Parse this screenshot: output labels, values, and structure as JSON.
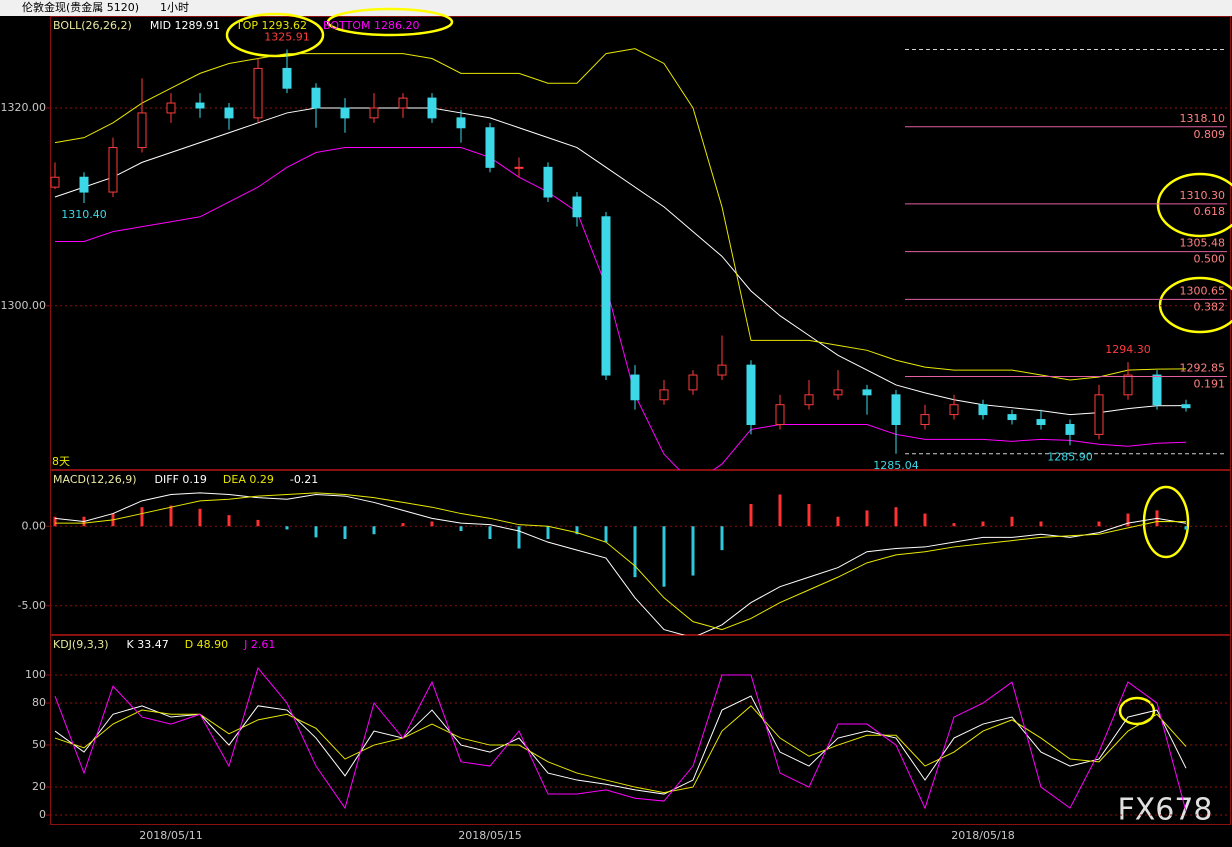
{
  "header": {
    "symbol": "伦敦金现(贵金属 5120)",
    "period": "1小时"
  },
  "watermark": "FX678",
  "chart_data": [
    {
      "type": "candlestick",
      "indicator": "BOLL(26,26,2)",
      "ylim": [
        1283.4,
        1329.3
      ],
      "yticks": [
        {
          "value": 1300,
          "label": "1300.00"
        },
        {
          "value": 1320,
          "label": "1320.00"
        }
      ],
      "grid": true,
      "up_color": "#ff3c3c",
      "down_color": "#3cd8e8",
      "open": [
        1312,
        1313,
        1311.5,
        1316,
        1319.5,
        1320.5,
        1320,
        1319,
        1324,
        1322,
        1320,
        1319,
        1320,
        1321,
        1319,
        1318,
        1314,
        1314,
        1311,
        1309,
        1293,
        1290.5,
        1291.5,
        1293,
        1294,
        1288,
        1290,
        1291,
        1291.5,
        1291,
        1288,
        1289,
        1290,
        1289,
        1288.5,
        1288,
        1287,
        1291,
        1293,
        1290
      ],
      "high": [
        1314.5,
        1313.5,
        1317,
        1323,
        1321.5,
        1321.5,
        1320.5,
        1325,
        1325.91,
        1322.5,
        1321,
        1321.5,
        1321.5,
        1321.5,
        1319.8,
        1318.5,
        1315,
        1314.5,
        1311.5,
        1309.5,
        1294,
        1292.5,
        1293.5,
        1297,
        1294.5,
        1291,
        1292.5,
        1293.5,
        1292,
        1291.5,
        1290,
        1291,
        1290.5,
        1289.5,
        1289.5,
        1288.5,
        1292,
        1294.3,
        1293.5,
        1290.5
      ],
      "low": [
        1311.8,
        1310.4,
        1311,
        1315.5,
        1318.5,
        1319,
        1317.8,
        1318.5,
        1321.5,
        1318,
        1317.5,
        1318.5,
        1319,
        1318.5,
        1316.5,
        1313.5,
        1313,
        1310.5,
        1308,
        1292.5,
        1289.5,
        1290,
        1291,
        1292.5,
        1287,
        1287.5,
        1289.5,
        1290.5,
        1289,
        1285.04,
        1287.5,
        1288.5,
        1288.5,
        1288,
        1287.5,
        1285.9,
        1286.5,
        1290.5,
        1289.5,
        1289.3
      ],
      "close": [
        1313,
        1311.5,
        1316,
        1319.5,
        1320.5,
        1320,
        1319,
        1324,
        1322,
        1320,
        1319,
        1320,
        1321,
        1319,
        1318,
        1314,
        1314,
        1311,
        1309,
        1293,
        1290.5,
        1291.5,
        1293,
        1294,
        1288,
        1290,
        1291,
        1291.5,
        1291,
        1288,
        1289,
        1290,
        1289,
        1288.5,
        1288,
        1287,
        1291,
        1293,
        1290,
        1289.7
      ],
      "series": [
        {
          "name": "MID 1289.91",
          "color": "#ffffff",
          "values": [
            1311,
            1312,
            1313,
            1314.5,
            1315.5,
            1316.5,
            1317.5,
            1318.5,
            1319.5,
            1320,
            1320,
            1320,
            1320,
            1320,
            1319.5,
            1319,
            1318,
            1317,
            1316,
            1314,
            1312,
            1310,
            1307.5,
            1305,
            1301.5,
            1299,
            1297,
            1295,
            1293.5,
            1292,
            1291.2,
            1290.5,
            1290,
            1289.7,
            1289.4,
            1289,
            1289.2,
            1289.6,
            1289.9,
            1289.91
          ]
        },
        {
          "name": "TOP 1293.62",
          "color": "#e8e800",
          "values": [
            1316.5,
            1317,
            1318.5,
            1320.5,
            1322,
            1323.5,
            1324.5,
            1325,
            1325.5,
            1325.5,
            1325.5,
            1325.5,
            1325.5,
            1325,
            1323.5,
            1323.5,
            1323.5,
            1322.5,
            1322.5,
            1325.5,
            1326,
            1324.5,
            1320,
            1310,
            1296.5,
            1296.5,
            1296.5,
            1296,
            1295.5,
            1294.5,
            1293.8,
            1293.5,
            1293.5,
            1293.5,
            1293,
            1292.5,
            1292.8,
            1293.5,
            1293.6,
            1293.62
          ]
        },
        {
          "name": "BOTTOM 1286.20",
          "color": "#ff00ff",
          "values": [
            1306.5,
            1306.5,
            1307.5,
            1308,
            1308.5,
            1309,
            1310.5,
            1312,
            1314,
            1315.5,
            1316,
            1316,
            1316,
            1316,
            1316,
            1315,
            1313,
            1311.5,
            1309.5,
            1302,
            1291,
            1285,
            1282,
            1284,
            1287.5,
            1288,
            1288,
            1288,
            1288,
            1287,
            1286.5,
            1286.5,
            1286.5,
            1286.3,
            1286.5,
            1286.4,
            1286,
            1285.8,
            1286.1,
            1286.2
          ]
        }
      ],
      "fib_color": "#e060a0",
      "fib_levels": [
        {
          "price": {
            "value": 1318.1,
            "label": "1318.10"
          },
          "ratio": 0.809
        },
        {
          "price": {
            "value": 1310.3,
            "label": "1310.30"
          },
          "ratio": 0.618
        },
        {
          "price": 1305.48,
          "ratio": {
            "value": 0.5,
            "label": "0.500"
          }
        },
        {
          "price": 1300.65,
          "ratio": 0.382
        },
        {
          "price": 1292.85,
          "ratio": 0.191
        }
      ],
      "annotations": [
        1325.91,
        {
          "value": 1310.4,
          "label": "1310.40"
        },
        1285.04,
        {
          "value": 1294.3,
          "label": "1294.30"
        },
        {
          "value": 1285.9,
          "label": "1285.90"
        }
      ],
      "note": "8天"
    },
    {
      "type": "bar",
      "indicator": "MACD(12,26,9)",
      "ylim": [
        -6.84,
        3.54
      ],
      "yticks": [
        {
          "value": 0,
          "label": "0.00"
        },
        {
          "value": -5,
          "label": "-5.00"
        }
      ],
      "grid": true,
      "up_color": "#ff3232",
      "down_color": "#30c8dc",
      "series": [
        {
          "name": "DIFF 0.19",
          "color": "#ffffff",
          "values": [
            0.5,
            0.3,
            0.8,
            1.6,
            2.0,
            2.1,
            2.0,
            1.8,
            1.7,
            2.0,
            1.9,
            1.5,
            1.0,
            0.5,
            0.2,
            0.1,
            -0.3,
            -1.0,
            -1.5,
            -2.0,
            -4.5,
            -6.5,
            -7.0,
            -6.2,
            -4.8,
            -3.8,
            -3.2,
            -2.6,
            -1.6,
            -1.4,
            -1.3,
            -1.0,
            -0.7,
            -0.7,
            -0.5,
            -0.7,
            -0.4,
            0.2,
            0.5,
            0.19
          ]
        },
        {
          "name": "DEA 0.29",
          "color": "#e8e800",
          "values": [
            0.2,
            0.2,
            0.4,
            0.8,
            1.2,
            1.6,
            1.7,
            1.9,
            2.0,
            2.1,
            2.0,
            1.8,
            1.5,
            1.2,
            0.8,
            0.5,
            0.1,
            0.0,
            -0.4,
            -1.0,
            -2.5,
            -4.5,
            -6.0,
            -6.5,
            -5.8,
            -4.8,
            -4.0,
            -3.2,
            -2.3,
            -1.8,
            -1.6,
            -1.3,
            -1.1,
            -0.9,
            -0.7,
            -0.6,
            -0.5,
            -0.1,
            0.3,
            0.29
          ]
        },
        {
          "name": "-0.21",
          "type": "bar",
          "color": "#ffffff",
          "values": [
            0.6,
            0.6,
            0.8,
            1.2,
            1.3,
            1.1,
            0.7,
            0.4,
            -0.2,
            -0.7,
            -0.8,
            -0.5,
            0.2,
            0.3,
            -0.3,
            -0.8,
            -1.4,
            -0.8,
            -0.5,
            -1.0,
            -3.2,
            -3.8,
            -3.1,
            -1.5,
            1.4,
            2.0,
            1.4,
            0.6,
            1.0,
            1.2,
            0.8,
            0.2,
            0.3,
            0.6,
            0.3,
            0.0,
            0.3,
            0.8,
            1.0,
            -0.21
          ]
        }
      ]
    },
    {
      "type": "line",
      "indicator": "KDJ(9,3,3)",
      "ylim": [
        -7.1,
        128.6
      ],
      "yticks": [
        0,
        20,
        50,
        80,
        100
      ],
      "grid": true,
      "categories": [
        null,
        null,
        null,
        null,
        "2018/05/11",
        null,
        null,
        null,
        null,
        null,
        null,
        null,
        null,
        null,
        null,
        "2018/05/15",
        null,
        null,
        null,
        null,
        null,
        null,
        null,
        null,
        null,
        null,
        null,
        null,
        null,
        null,
        null,
        null,
        "2018/05/18",
        null,
        null,
        null,
        null,
        null,
        null,
        null
      ],
      "series": [
        {
          "name": "K 33.47",
          "color": "#ffffff",
          "values": [
            60,
            45,
            72,
            78,
            70,
            72,
            50,
            78,
            75,
            55,
            28,
            60,
            55,
            75,
            50,
            45,
            55,
            30,
            25,
            22,
            18,
            15,
            25,
            75,
            85,
            45,
            35,
            55,
            60,
            55,
            25,
            55,
            65,
            70,
            45,
            35,
            40,
            70,
            75,
            33.47
          ]
        },
        {
          "name": "D 48.90",
          "color": "#e8e800",
          "values": [
            55,
            48,
            65,
            75,
            72,
            72,
            58,
            68,
            72,
            62,
            40,
            50,
            55,
            65,
            55,
            50,
            50,
            38,
            30,
            25,
            20,
            16,
            20,
            60,
            78,
            55,
            42,
            50,
            57,
            57,
            35,
            45,
            60,
            68,
            55,
            40,
            38,
            60,
            72,
            48.9
          ]
        },
        {
          "name": "J 2.61",
          "color": "#ff00ff",
          "values": [
            85,
            30,
            92,
            70,
            65,
            72,
            35,
            105,
            80,
            35,
            5,
            80,
            55,
            95,
            38,
            35,
            60,
            15,
            15,
            18,
            12,
            10,
            35,
            100,
            100,
            30,
            20,
            65,
            65,
            50,
            5,
            70,
            80,
            95,
            20,
            5,
            45,
            95,
            80,
            2.61
          ]
        }
      ]
    }
  ]
}
